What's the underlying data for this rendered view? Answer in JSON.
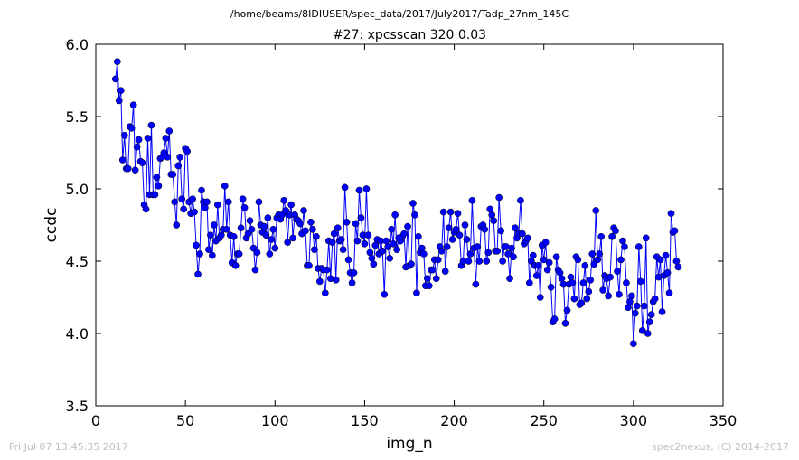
{
  "suptitle": "/home/beams/8IDIUSER/spec_data/2017/July2017/Tadp_27nm_145C",
  "title": "#27: xpcsscan 320 0.03",
  "footer_left": "Fri Jul 07 13:45:35 2017",
  "footer_right": "spec2nexus, (C) 2014-2017",
  "chart_data": {
    "type": "line",
    "xlabel": "img_n",
    "ylabel": "ccdc",
    "xlim": [
      0,
      350
    ],
    "ylim": [
      3.5,
      6.0
    ],
    "xticks": [
      "0",
      "50",
      "100",
      "150",
      "200",
      "250",
      "300",
      "350"
    ],
    "yticks": [
      "3.5",
      "4.0",
      "4.5",
      "5.0",
      "5.5",
      "6.0"
    ],
    "grid": false,
    "marker": "circle",
    "series_color": "#0000ff",
    "series": [
      {
        "x_start": 11,
        "x_step": 1,
        "values": [
          5.76,
          5.88,
          5.61,
          5.68,
          5.2,
          5.37,
          5.14,
          5.14,
          5.43,
          5.42,
          5.58,
          5.13,
          5.29,
          5.34,
          5.19,
          5.18,
          4.89,
          4.86,
          5.35,
          4.96,
          5.44,
          4.96,
          4.96,
          5.08,
          5.02,
          5.21,
          5.22,
          5.25,
          5.35,
          5.22,
          5.4,
          5.1,
          5.1,
          4.91,
          4.75,
          5.16,
          5.22,
          4.93,
          4.86,
          5.28,
          5.26,
          4.91,
          4.83,
          4.93,
          4.84,
          4.61,
          4.41,
          4.55,
          4.99,
          4.91,
          4.87,
          4.91,
          4.58,
          4.68,
          4.54,
          4.75,
          4.64,
          4.89,
          4.66,
          4.68,
          4.72,
          5.02,
          4.72,
          4.91,
          4.68,
          4.49,
          4.67,
          4.47,
          4.55,
          4.55,
          4.73,
          4.93,
          4.87,
          4.66,
          4.69,
          4.78,
          4.72,
          4.59,
          4.44,
          4.56,
          4.91,
          4.75,
          4.7,
          4.74,
          4.68,
          4.8,
          4.55,
          4.65,
          4.72,
          4.59,
          4.8,
          4.82,
          4.79,
          4.82,
          4.92,
          4.85,
          4.63,
          4.82,
          4.89,
          4.66,
          4.82,
          4.79,
          4.78,
          4.76,
          4.69,
          4.85,
          4.71,
          4.47,
          4.47,
          4.77,
          4.72,
          4.58,
          4.67,
          4.45,
          4.36,
          4.45,
          4.44,
          4.28,
          4.44,
          4.64,
          4.38,
          4.63,
          4.69,
          4.37,
          4.73,
          4.64,
          4.65,
          4.58,
          5.01,
          4.77,
          4.51,
          4.42,
          4.35,
          4.42,
          4.76,
          4.64,
          4.99,
          4.8,
          4.68,
          4.62,
          5.0,
          4.68,
          4.56,
          4.52,
          4.48,
          4.61,
          4.65,
          4.55,
          4.64,
          4.57,
          4.27,
          4.64,
          4.6,
          4.52,
          4.72,
          4.62,
          4.82,
          4.58,
          4.66,
          4.64,
          4.67,
          4.69,
          4.46,
          4.74,
          4.47,
          4.48,
          4.9,
          4.82,
          4.28,
          4.67,
          4.56,
          4.59,
          4.55,
          4.33,
          4.38,
          4.33,
          4.44,
          4.44,
          4.51,
          4.38,
          4.51,
          4.6,
          4.57,
          4.84,
          4.43,
          4.6,
          4.73,
          4.84,
          4.65,
          4.7,
          4.72,
          4.83,
          4.68,
          4.47,
          4.5,
          4.75,
          4.65,
          4.5,
          4.55,
          4.92,
          4.59,
          4.34,
          4.6,
          4.5,
          4.74,
          4.75,
          4.72,
          4.5,
          4.56,
          4.86,
          4.82,
          4.78,
          4.57,
          4.57,
          4.94,
          4.71,
          4.5,
          4.6,
          4.6,
          4.55,
          4.38,
          4.59,
          4.53,
          4.73,
          4.66,
          4.69,
          4.92,
          4.69,
          4.62,
          4.64,
          4.66,
          4.35,
          4.5,
          4.54,
          4.47,
          4.4,
          4.47,
          4.25,
          4.61,
          4.51,
          4.63,
          4.44,
          4.49,
          4.32,
          4.08,
          4.1,
          4.53,
          4.44,
          4.42,
          4.38,
          4.34,
          4.07,
          4.16,
          4.34,
          4.39,
          4.35,
          4.24,
          4.53,
          4.51,
          4.2,
          4.21,
          4.35,
          4.47,
          4.24,
          4.29,
          4.37,
          4.55,
          4.48,
          4.85,
          4.51,
          4.55,
          4.67,
          4.3,
          4.4,
          4.38,
          4.26,
          4.39,
          4.67,
          4.73,
          4.71,
          4.43,
          4.27,
          4.51,
          4.64,
          4.6,
          4.35,
          4.18,
          4.22,
          4.26,
          3.93,
          4.14,
          4.19,
          4.6,
          4.36,
          4.02,
          4.19,
          4.66,
          4.0,
          4.08,
          4.13,
          4.22,
          4.24,
          4.53,
          4.39,
          4.51,
          4.15,
          4.4,
          4.54,
          4.42,
          4.28,
          4.83,
          4.7,
          4.71,
          4.5,
          4.46
        ]
      }
    ]
  }
}
